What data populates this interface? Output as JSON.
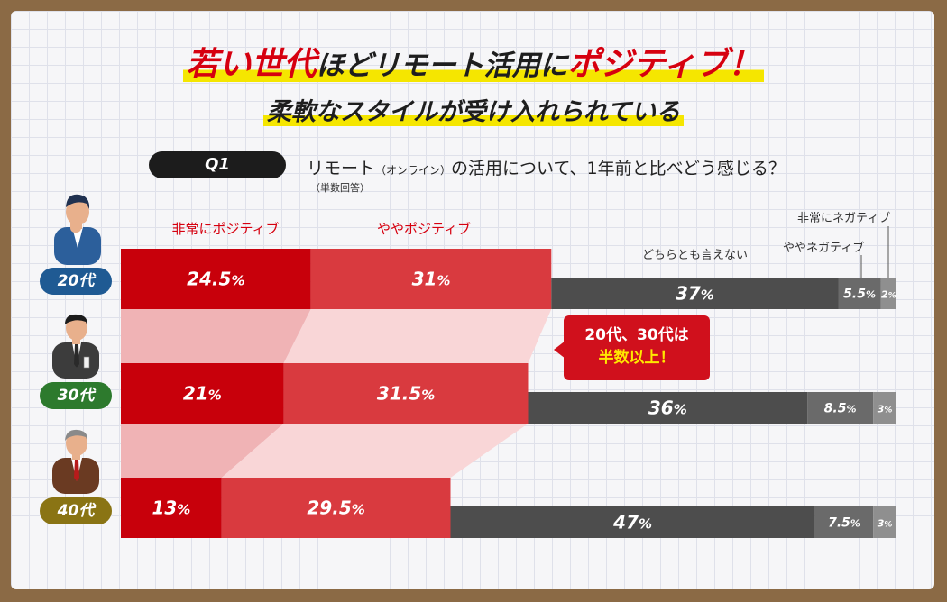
{
  "title": {
    "line1_a": "若い世代",
    "line1_b": "ほどリモート活用に",
    "line1_c": "ポジティブ！",
    "line2": "柔軟なスタイルが受け入れられている"
  },
  "question": {
    "badge": "Q1",
    "text_a": "リモート",
    "text_paren": "（オンライン）",
    "text_b": "の活用について、1年前と比べどう感じる？",
    "note": "（単数回答）"
  },
  "callout": {
    "line1": "20代、30代は",
    "line2": "半数以上！"
  },
  "colors": {
    "very_positive": "#c8000b",
    "somewhat_positive": "#d93a3f",
    "neutral": "#4d4d4d",
    "somewhat_negative": "#6a6a6a",
    "very_negative": "#8f8f8f",
    "age_20s": "#1f5a93",
    "age_30s": "#2d7a2d",
    "age_40s": "#8a7414"
  },
  "chart_data": {
    "type": "bar",
    "stacked": true,
    "orientation": "horizontal",
    "unit": "%",
    "categories": [
      "20代",
      "30代",
      "40代"
    ],
    "series": [
      {
        "name": "非常にポジティブ",
        "values": [
          24.5,
          21,
          13
        ],
        "labels": [
          "24.5",
          "21",
          "13"
        ]
      },
      {
        "name": "ややポジティブ",
        "values": [
          31,
          31.5,
          29.5
        ],
        "labels": [
          "31",
          "31.5",
          "29.5"
        ]
      },
      {
        "name": "どちらとも言えない",
        "values": [
          37,
          36,
          47
        ],
        "labels": [
          "37",
          "36",
          "47"
        ]
      },
      {
        "name": "ややネガティブ",
        "values": [
          5.5,
          8.5,
          7.5
        ],
        "labels": [
          "5.5",
          "8.5",
          "7.5"
        ]
      },
      {
        "name": "非常にネガティブ",
        "values": [
          2,
          3,
          3
        ],
        "labels": [
          "2",
          "3",
          "3"
        ]
      }
    ],
    "xlim": [
      0,
      100
    ]
  }
}
